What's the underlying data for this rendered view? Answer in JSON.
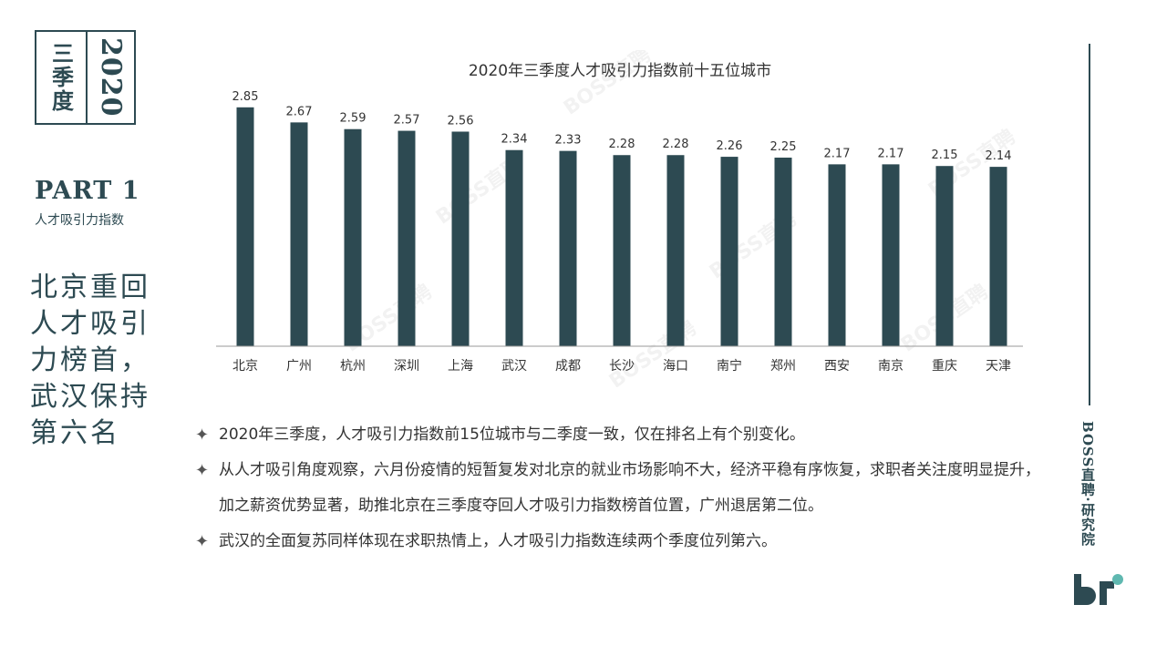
{
  "badge": {
    "season": "三季度",
    "year": "2020"
  },
  "part": {
    "title": "PART 1",
    "subtitle": "人才吸引力指数"
  },
  "headline": "北京重回人才吸引力榜首，武汉保持第六名",
  "watermark": "BOSS直聘",
  "chart_data": {
    "type": "bar",
    "title": "2020年三季度人才吸引力指数前十五位城市",
    "categories": [
      "北京",
      "广州",
      "杭州",
      "深圳",
      "上海",
      "武汉",
      "成都",
      "长沙",
      "海口",
      "南宁",
      "郑州",
      "西安",
      "南京",
      "重庆",
      "天津"
    ],
    "values": [
      2.85,
      2.67,
      2.59,
      2.57,
      2.56,
      2.34,
      2.33,
      2.28,
      2.28,
      2.26,
      2.25,
      2.17,
      2.17,
      2.15,
      2.14
    ],
    "labels": [
      "2.85",
      "2.67",
      "2.59",
      "2.57",
      "2.56",
      "2.34",
      "2.33",
      "2.28",
      "2.28",
      "2.26",
      "2.25",
      "2.17",
      "2.17",
      "2.15",
      "2.14"
    ],
    "xlabel": "",
    "ylabel": "",
    "y_axis_visible": false,
    "grid": false,
    "legend": "none",
    "bar_color": "#2d4a52"
  },
  "bullets": [
    "2020年三季度，人才吸引力指数前15位城市与二季度一致，仅在排名上有个别变化。",
    "从人才吸引角度观察，六月份疫情的短暂复发对北京的就业市场影响不大，经济平稳有序恢复，求职者关注度明显提升，加之薪资优势显著，助推北京在三季度夺回人才吸引力指数榜首位置，广州退居第二位。",
    "武汉的全面复苏同样体现在求职热情上，人才吸引力指数连续两个季度位列第六。"
  ],
  "bullet_icon": "four-point-star-icon",
  "brand": "BOSS直聘·研究院",
  "colors": {
    "primary": "#2d4a52",
    "logo_dot": "#5fb8b0",
    "text": "#333333"
  }
}
